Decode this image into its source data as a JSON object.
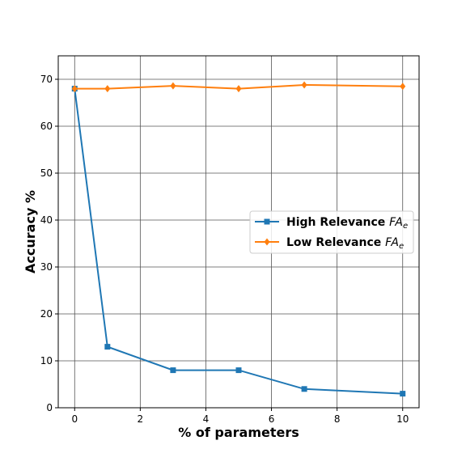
{
  "chart_data": {
    "type": "line",
    "xlabel": "% of parameters",
    "ylabel": "Accuracy %",
    "xlim": [
      -0.5,
      10.5
    ],
    "ylim": [
      0,
      75
    ],
    "xticks": [
      0,
      2,
      4,
      6,
      8,
      10
    ],
    "yticks": [
      0,
      10,
      20,
      30,
      40,
      50,
      60,
      70
    ],
    "grid": true,
    "legend_position": "center-right",
    "series": [
      {
        "name": "High Relevance FA",
        "name_subscript": "e",
        "color": "#1f77b4",
        "marker": "square",
        "x": [
          0,
          1,
          3,
          5,
          7,
          10
        ],
        "y": [
          68,
          13,
          8,
          8,
          4,
          3
        ]
      },
      {
        "name": "Low Relevance FA",
        "name_subscript": "e",
        "color": "#ff7f0e",
        "marker": "diamond",
        "x": [
          0,
          1,
          3,
          5,
          7,
          10
        ],
        "y": [
          68,
          68,
          68.6,
          68,
          68.8,
          68.5
        ]
      }
    ]
  }
}
